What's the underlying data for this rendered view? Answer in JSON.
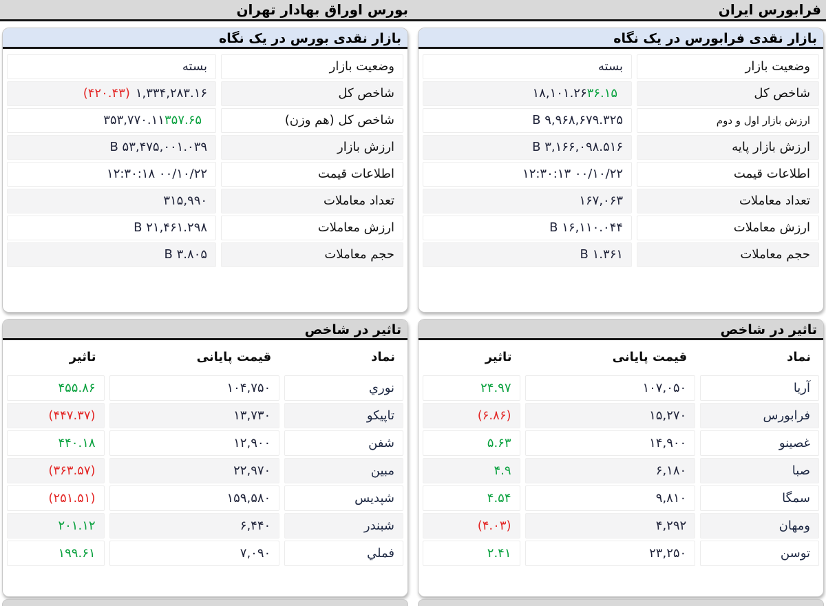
{
  "colors": {
    "positive": "#09a13e",
    "negative": "#e32726",
    "title_blue": "#dbe5f5",
    "title_gray": "#d7d7d7",
    "bar_gray": "#d9d9d9"
  },
  "farabourse": {
    "header": "فرابورس ایران",
    "glance": {
      "title": "بازار نقدی فرابورس در یک نگاه",
      "rows": [
        {
          "label": "وضعیت بازار",
          "value": "بسته"
        },
        {
          "label": "شاخص کل",
          "value": "۱۸,۱۰۱.۲۶",
          "change": "۳۶.۱۵",
          "change_dir": "up"
        },
        {
          "label": "ارزش بازار اول و دوم",
          "value": "۹,۹۶۸,۶۷۹.۳۲۵ B"
        },
        {
          "label": "ارزش بازار پایه",
          "value": "۳,۱۶۶,۰۹۸.۵۱۶ B"
        },
        {
          "label": "اطلاعات قیمت",
          "value": "۰۰/۱۰/۲۲ ۱۲:۳۰:۱۳"
        },
        {
          "label": "تعداد معاملات",
          "value": "۱۶۷,۰۶۳"
        },
        {
          "label": "ارزش معاملات",
          "value": "۱۶,۱۱۰.۰۴۴ B"
        },
        {
          "label": "حجم معاملات",
          "value": "۱.۳۶۱ B"
        }
      ]
    },
    "impact": {
      "title": "تاثیر در شاخص",
      "columns": [
        "نماد",
        "قیمت پایانی",
        "تاثیر"
      ],
      "rows": [
        {
          "symbol": "آریا",
          "close": "۱۰۷,۰۵۰",
          "impact": "۲۴.۹۷",
          "impact_dir": "up"
        },
        {
          "symbol": "فرابورس",
          "close": "۱۵,۲۷۰",
          "impact": "(۶.۸۶)",
          "impact_dir": "down"
        },
        {
          "symbol": "غصینو",
          "close": "۱۴,۹۰۰",
          "impact": "۵.۶۳",
          "impact_dir": "up"
        },
        {
          "symbol": "صبا",
          "close": "۶,۱۸۰",
          "impact": "۴.۹",
          "impact_dir": "up"
        },
        {
          "symbol": "سمگا",
          "close": "۹,۸۱۰",
          "impact": "۴.۵۴",
          "impact_dir": "up"
        },
        {
          "symbol": "ومهان",
          "close": "۴,۲۹۲",
          "impact": "(۴.۰۳)",
          "impact_dir": "down"
        },
        {
          "symbol": "توسن",
          "close": "۲۳,۲۵۰",
          "impact": "۲.۴۱",
          "impact_dir": "up"
        }
      ]
    }
  },
  "bourse": {
    "header": "بورس اوراق بهادار تهران",
    "glance": {
      "title": "بازار نقدی بورس در یک نگاه",
      "rows": [
        {
          "label": "وضعیت بازار",
          "value": "بسته"
        },
        {
          "label": "شاخص کل",
          "value": "۱,۳۳۴,۲۸۳.۱۶",
          "change": "(۴۲۰.۴۳)",
          "change_dir": "down"
        },
        {
          "label": "شاخص کل (هم وزن)",
          "value": "۳۵۳,۷۷۰.۱۱",
          "change": "۳۵۷.۶۵",
          "change_dir": "up"
        },
        {
          "label": "ارزش بازار",
          "value": "۵۳,۴۷۵,۰۰۱.۰۳۹ B"
        },
        {
          "label": "اطلاعات قیمت",
          "value": "۰۰/۱۰/۲۲ ۱۲:۳۰:۱۸"
        },
        {
          "label": "تعداد معاملات",
          "value": "۳۱۵,۹۹۰"
        },
        {
          "label": "ارزش معاملات",
          "value": "۲۱,۴۶۱.۲۹۸ B"
        },
        {
          "label": "حجم معاملات",
          "value": "۳.۸۰۵ B"
        }
      ]
    },
    "impact": {
      "title": "تاثیر در شاخص",
      "columns": [
        "نماد",
        "قیمت پایانی",
        "تاثیر"
      ],
      "rows": [
        {
          "symbol": "نوري",
          "close": "۱۰۴,۷۵۰",
          "impact": "۴۵۵.۸۶",
          "impact_dir": "up"
        },
        {
          "symbol": "تاپیکو",
          "close": "۱۳,۷۳۰",
          "impact": "(۴۴۷.۳۷)",
          "impact_dir": "down"
        },
        {
          "symbol": "شفن",
          "close": "۱۲,۹۰۰",
          "impact": "۴۴۰.۱۸",
          "impact_dir": "up"
        },
        {
          "symbol": "مبین",
          "close": "۲۲,۹۷۰",
          "impact": "(۳۶۳.۵۷)",
          "impact_dir": "down"
        },
        {
          "symbol": "شپدیس",
          "close": "۱۵۹,۵۸۰",
          "impact": "(۲۵۱.۵۱)",
          "impact_dir": "down"
        },
        {
          "symbol": "شبندر",
          "close": "۶,۴۴۰",
          "impact": "۲۰۱.۱۲",
          "impact_dir": "up"
        },
        {
          "symbol": "فملي",
          "close": "۷,۰۹۰",
          "impact": "۱۹۹.۶۱",
          "impact_dir": "up"
        }
      ]
    }
  }
}
